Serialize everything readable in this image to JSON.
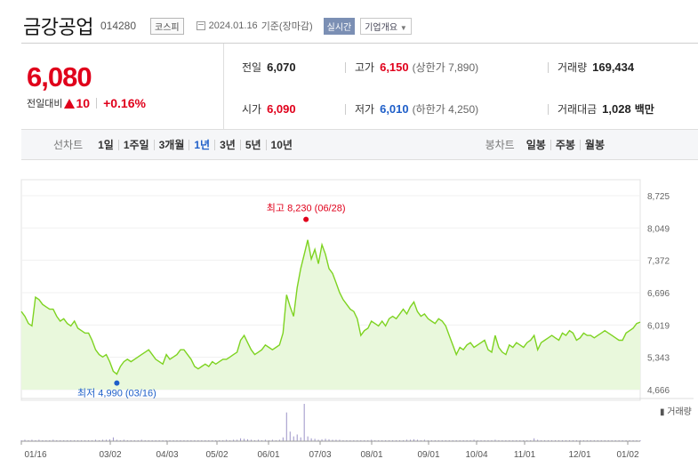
{
  "header": {
    "company": "금강공업",
    "code": "014280",
    "market": "코스피",
    "date": "2024.01.16",
    "date_suffix": "기준(장마감)",
    "realtime": "실시간",
    "overview": "기업개요",
    "overview_icon": "chevron-down-icon"
  },
  "price": {
    "current": "6,080",
    "change_label": "전일대비",
    "change": "10",
    "change_pct": "+0.16%"
  },
  "stats": {
    "prev_close_label": "전일",
    "prev_close": "6,070",
    "high_label": "고가",
    "high": "6,150",
    "upper_limit": "(상한가 7,890)",
    "volume_label": "거래량",
    "volume": "169,434",
    "open_label": "시가",
    "open": "6,090",
    "low_label": "저가",
    "low": "6,010",
    "lower_limit": "(하한가 4,250)",
    "amount_label": "거래대금",
    "amount": "1,028",
    "amount_unit": "백만"
  },
  "period": {
    "label": "선차트",
    "items": [
      "1일",
      "1주일",
      "3개월",
      "1년",
      "3년",
      "5년",
      "10년"
    ],
    "active": "1년",
    "candle_label": "봉차트",
    "candle_items": [
      "일봉",
      "주봉",
      "월봉"
    ]
  },
  "colors": {
    "up": "#e0001b",
    "down": "#1f5fc9",
    "line": "#7ed321",
    "area": "#e9f8dc",
    "volume": "#9b93c7"
  },
  "chart_data": {
    "type": "area",
    "y_ticks": [
      "8,725",
      "8,049",
      "7,372",
      "6,696",
      "6,019",
      "5,343",
      "4,666"
    ],
    "ylim": [
      4666,
      8725
    ],
    "x_tick_labels": [
      "01/16",
      "03/02",
      "04/03",
      "05/02",
      "06/01",
      "07/03",
      "08/01",
      "09/01",
      "10/04",
      "11/01",
      "12/01",
      "01/02"
    ],
    "high_annotation": "최고 8,230 (06/28)",
    "low_annotation": "최저 4,990 (03/16)",
    "volume_legend": "거래량",
    "series": [
      {
        "values": [
          6300,
          6200,
          6050,
          6000,
          6600,
          6550,
          6450,
          6400,
          6350,
          6350,
          6200,
          6100,
          6150,
          6050,
          6000,
          6100,
          5950,
          5900,
          5850,
          5850,
          5700,
          5500,
          5400,
          5350,
          5400,
          5250,
          5050,
          4990,
          5150,
          5250,
          5300,
          5250,
          5300,
          5350,
          5400,
          5450,
          5500,
          5400,
          5300,
          5250,
          5200,
          5400,
          5300,
          5350,
          5400,
          5500,
          5500,
          5400,
          5300,
          5150,
          5100,
          5150,
          5200,
          5150,
          5250,
          5200,
          5250,
          5300,
          5300,
          5350,
          5400,
          5450,
          5700,
          5800,
          5650,
          5500,
          5400,
          5450,
          5500,
          5600,
          5550,
          5500,
          5550,
          5600,
          5850,
          6650,
          6400,
          6200,
          6800,
          7200,
          7500,
          7800,
          7400,
          7600,
          7300,
          7700,
          7500,
          7200,
          7100,
          6900,
          6700,
          6550,
          6450,
          6350,
          6300,
          6150,
          5800,
          5900,
          5950,
          6100,
          6050,
          6000,
          6100,
          6000,
          6150,
          6200,
          6150,
          6250,
          6350,
          6250,
          6400,
          6500,
          6300,
          6200,
          6250,
          6150,
          6100,
          6050,
          6150,
          6100,
          6000,
          5800,
          5600,
          5400,
          5550,
          5500,
          5600,
          5650,
          5550,
          5600,
          5650,
          5700,
          5500,
          5450,
          5800,
          5550,
          5450,
          5400,
          5600,
          5550,
          5650,
          5600,
          5550,
          5650,
          5700,
          5800,
          5500,
          5650,
          5700,
          5750,
          5800,
          5750,
          5700,
          5850,
          5800,
          5900,
          5850,
          5700,
          5750,
          5850,
          5800,
          5800,
          5750,
          5800,
          5850,
          5900,
          5850,
          5800,
          5750,
          5700,
          5700,
          5850,
          5900,
          5950,
          6050,
          6080
        ]
      },
      {
        "name": "거래량",
        "values": [
          2,
          3,
          2,
          3,
          2,
          3,
          2,
          2,
          2,
          3,
          2,
          2,
          2,
          2,
          2,
          2,
          2,
          2,
          2,
          2,
          2,
          3,
          2,
          3,
          3,
          4,
          8,
          3,
          2,
          3,
          2,
          2,
          2,
          2,
          3,
          2,
          2,
          2,
          2,
          2,
          2,
          2,
          2,
          2,
          2,
          2,
          2,
          2,
          2,
          2,
          2,
          2,
          2,
          2,
          2,
          2,
          2,
          2,
          3,
          2,
          3,
          3,
          6,
          5,
          4,
          3,
          2,
          3,
          2,
          3,
          2,
          3,
          2,
          3,
          8,
          60,
          20,
          10,
          14,
          8,
          78,
          10,
          6,
          5,
          3,
          4,
          5,
          4,
          3,
          3,
          3,
          2,
          2,
          2,
          2,
          2,
          2,
          2,
          2,
          3,
          2,
          2,
          2,
          2,
          2,
          2,
          2,
          2,
          2,
          3,
          3,
          4,
          3,
          2,
          3,
          2,
          2,
          2,
          2,
          2,
          2,
          2,
          2,
          2,
          2,
          2,
          2,
          2,
          3,
          2,
          2,
          2,
          2,
          2,
          3,
          2,
          2,
          2,
          2,
          2,
          2,
          2,
          2,
          2,
          2,
          6,
          3,
          2,
          2,
          2,
          2,
          2,
          2,
          2,
          2,
          2,
          2,
          2,
          2,
          2,
          2,
          2,
          2,
          2,
          2,
          2,
          2,
          2,
          2,
          2,
          2,
          2,
          2,
          2,
          2,
          2
        ]
      }
    ]
  }
}
